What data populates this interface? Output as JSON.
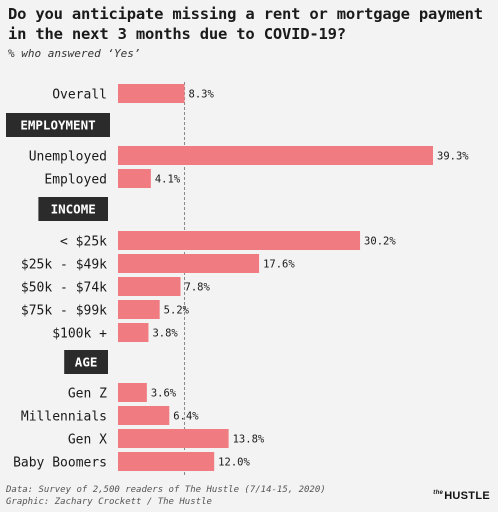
{
  "title": "Do you anticipate missing a rent or mortgage payment in the next 3 months due to COVID-19?",
  "subtitle": "% who answered ‘Yes’",
  "footer": {
    "source": "Data: Survey of 2,500 readers of The Hustle (7/14-15, 2020)",
    "graphic": "Graphic: Zachary Crockett / The Hustle"
  },
  "logo": {
    "small": "the",
    "main": "HUSTLE"
  },
  "colors": {
    "bar": "#f07c82",
    "section": "#2b2b2b",
    "reference_line": "#888888"
  },
  "chart_data": {
    "type": "bar",
    "orientation": "horizontal",
    "unit": "%",
    "reference_line": 8.3,
    "xlim": [
      0,
      43
    ],
    "groups": [
      {
        "heading": "",
        "items": [
          {
            "label": "Overall",
            "value": 8.3,
            "value_label": "8.3%"
          }
        ]
      },
      {
        "heading": "EMPLOYMENT",
        "items": [
          {
            "label": "Unemployed",
            "value": 39.3,
            "value_label": "39.3%"
          },
          {
            "label": "Employed",
            "value": 4.1,
            "value_label": "4.1%"
          }
        ]
      },
      {
        "heading": "INCOME",
        "items": [
          {
            "label": "< $25k",
            "value": 30.2,
            "value_label": "30.2%"
          },
          {
            "label": "$25k - $49k",
            "value": 17.6,
            "value_label": "17.6%"
          },
          {
            "label": "$50k - $74k",
            "value": 7.8,
            "value_label": "7.8%"
          },
          {
            "label": "$75k - $99k",
            "value": 5.2,
            "value_label": "5.2%"
          },
          {
            "label": "$100k +",
            "value": 3.8,
            "value_label": "3.8%"
          }
        ]
      },
      {
        "heading": "AGE",
        "items": [
          {
            "label": "Gen Z",
            "value": 3.6,
            "value_label": "3.6%"
          },
          {
            "label": "Millennials",
            "value": 6.4,
            "value_label": "6.4%"
          },
          {
            "label": "Gen X",
            "value": 13.8,
            "value_label": "13.8%"
          },
          {
            "label": "Baby Boomers",
            "value": 12.0,
            "value_label": "12.0%"
          }
        ]
      }
    ]
  }
}
